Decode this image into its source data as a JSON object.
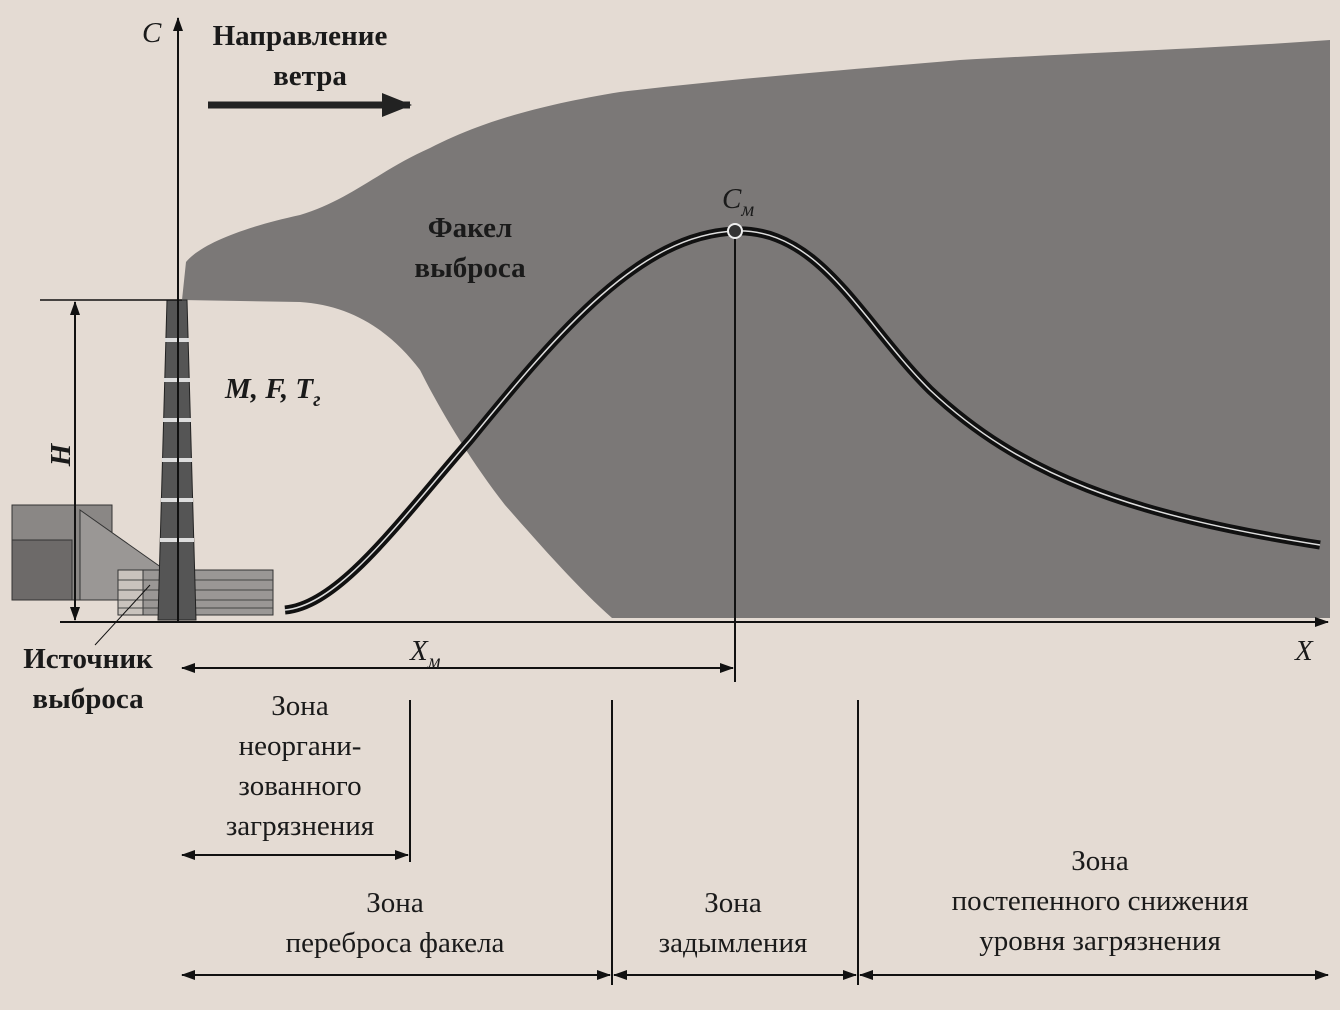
{
  "axes": {
    "y_label": "C",
    "x_label": "X"
  },
  "wind": {
    "lines": [
      "Направление",
      "ветра"
    ]
  },
  "plume": {
    "lines": [
      "Факел",
      "выброса"
    ]
  },
  "max_point": {
    "symbol": "C",
    "subscript": "м"
  },
  "parameters": {
    "text": "M, F, T",
    "subscript": "г"
  },
  "height_label": "H",
  "source": {
    "lines": [
      "Источник",
      "выброса"
    ]
  },
  "max_distance": {
    "symbol": "X",
    "subscript": "м"
  },
  "zones": [
    {
      "lines": [
        "Зона",
        "неоргани-",
        "зованного",
        "загрязнения"
      ]
    },
    {
      "lines": [
        "Зона",
        "переброса факела"
      ]
    },
    {
      "lines": [
        "Зона",
        "задымления"
      ]
    },
    {
      "lines": [
        "Зона",
        "постепенного снижения",
        "уровня загрязнения"
      ]
    }
  ]
}
